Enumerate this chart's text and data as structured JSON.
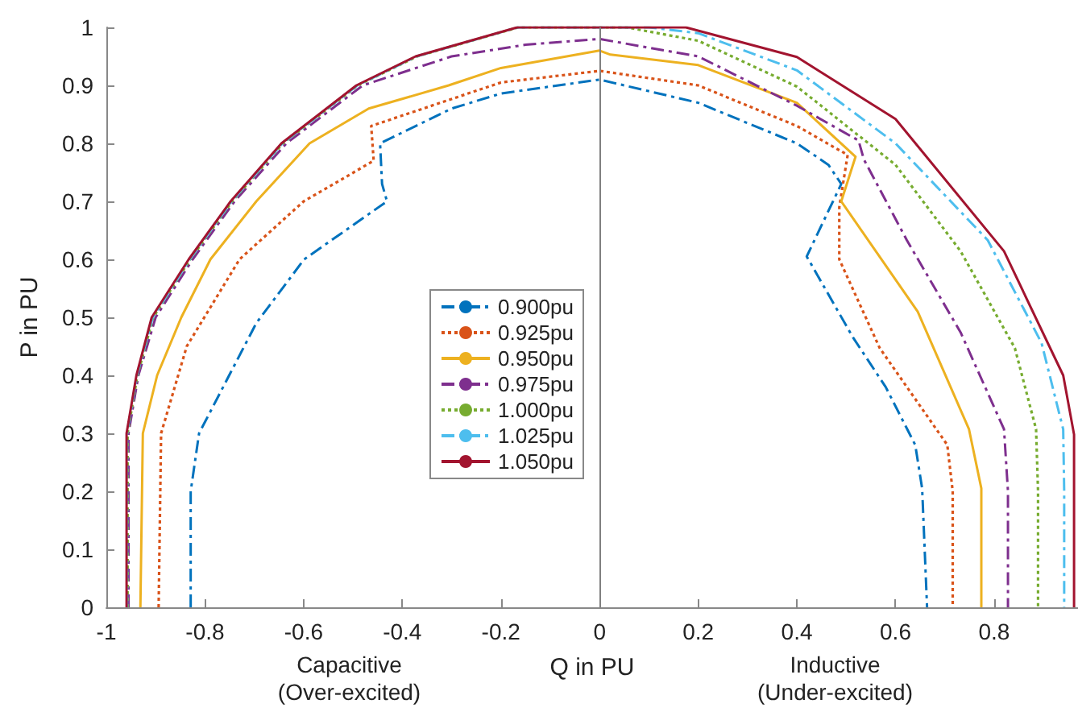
{
  "chart_data": {
    "type": "line",
    "xlabel": "Q in PU",
    "ylabel": "P in PU",
    "xlim": [
      -1,
      0.97
    ],
    "xticks": [
      -1,
      -0.8,
      -0.6,
      -0.4,
      -0.2,
      0,
      0.2,
      0.4,
      0.6,
      0.8
    ],
    "ylim": [
      0,
      1
    ],
    "yticks": [
      0,
      0.1,
      0.2,
      0.3,
      0.4,
      0.5,
      0.6,
      0.7,
      0.8,
      0.9,
      1
    ],
    "grid": false,
    "legend": "center left",
    "marker": "none",
    "annotations": [
      "Capacitive\n(Over-excited)",
      "Inductive\n(Under-excited)"
    ],
    "ref_lines": [
      {
        "axis": "x",
        "value": 0,
        "label": null,
        "color": "#808080"
      }
    ],
    "series": [
      {
        "name": "0.900pu",
        "color": "#0072bd",
        "line_style": "dashed",
        "x": [
          -0.829,
          -0.829,
          -0.812,
          -0.696,
          -0.599,
          -0.431,
          -0.441,
          -0.445,
          -0.3,
          -0.2,
          0,
          0.2,
          0.4,
          0.464,
          0.49,
          0.42,
          0.514,
          0.58,
          0.64,
          0.654,
          0.664
        ],
        "values": [
          0,
          0.2,
          0.3,
          0.49,
          0.6,
          0.7,
          0.73,
          0.8,
          0.86,
          0.886,
          0.91,
          0.87,
          0.8,
          0.763,
          0.73,
          0.605,
          0.465,
          0.38,
          0.28,
          0.205,
          0
        ]
      },
      {
        "name": "0.925pu",
        "color": "#d95319",
        "line_style": "dotted",
        "x": [
          -0.894,
          -0.889,
          -0.837,
          -0.73,
          -0.6,
          -0.458,
          -0.463,
          -0.2,
          0,
          0.2,
          0.4,
          0.503,
          0.486,
          0.486,
          0.568,
          0.705,
          0.716,
          0.716
        ],
        "values": [
          0,
          0.3,
          0.45,
          0.6,
          0.7,
          0.77,
          0.83,
          0.905,
          0.925,
          0.9,
          0.83,
          0.78,
          0.69,
          0.6,
          0.447,
          0.28,
          0.2,
          0
        ]
      },
      {
        "name": "0.950pu",
        "color": "#edb120",
        "line_style": "solid",
        "x": [
          -0.931,
          -0.926,
          -0.897,
          -0.848,
          -0.789,
          -0.696,
          -0.588,
          -0.468,
          -0.306,
          -0.2,
          0,
          0.022,
          0.2,
          0.4,
          0.519,
          0.49,
          0.645,
          0.749,
          0.774,
          0.774
        ],
        "values": [
          0,
          0.3,
          0.4,
          0.5,
          0.6,
          0.7,
          0.8,
          0.86,
          0.9,
          0.93,
          0.96,
          0.953,
          0.935,
          0.87,
          0.777,
          0.7,
          0.51,
          0.307,
          0.205,
          0
        ]
      },
      {
        "name": "0.975pu",
        "color": "#7e2f8e",
        "line_style": "dashed",
        "x": [
          -0.955,
          -0.955,
          -0.935,
          -0.9,
          -0.825,
          -0.74,
          -0.635,
          -0.48,
          -0.3,
          -0.15,
          0,
          0.2,
          0.4,
          0.525,
          0.536,
          0.623,
          0.732,
          0.82,
          0.828,
          0.828
        ],
        "values": [
          0,
          0.3,
          0.4,
          0.5,
          0.6,
          0.7,
          0.8,
          0.9,
          0.95,
          0.97,
          0.98,
          0.95,
          0.865,
          0.805,
          0.772,
          0.633,
          0.474,
          0.307,
          0.2,
          0
        ]
      },
      {
        "name": "1.000pu",
        "color": "#77ac30",
        "line_style": "dotted",
        "x": [
          -0.957,
          -0.957,
          -0.937,
          -0.905,
          -0.83,
          -0.745,
          -0.642,
          -0.49,
          -0.37,
          -0.165,
          0,
          0.055,
          0.2,
          0.4,
          0.6,
          0.732,
          0.842,
          0.885,
          0.889,
          0.889
        ],
        "values": [
          0,
          0.3,
          0.4,
          0.5,
          0.6,
          0.7,
          0.8,
          0.9,
          0.95,
          1,
          1,
          1,
          0.977,
          0.898,
          0.763,
          0.614,
          0.447,
          0.307,
          0.2,
          0
        ]
      },
      {
        "name": "1.025pu",
        "color": "#4dbeee",
        "line_style": "dashed",
        "x": [
          -0.958,
          -0.958,
          -0.938,
          -0.906,
          -0.831,
          -0.746,
          -0.643,
          -0.491,
          -0.371,
          -0.166,
          0,
          0.1,
          0.2,
          0.4,
          0.6,
          0.787,
          0.896,
          0.94,
          0.942,
          0.942
        ],
        "values": [
          0,
          0.3,
          0.4,
          0.5,
          0.6,
          0.7,
          0.8,
          0.9,
          0.95,
          1,
          1,
          1,
          0.99,
          0.926,
          0.8,
          0.633,
          0.456,
          0.307,
          0.2,
          0
        ]
      },
      {
        "name": "1.050pu",
        "color": "#a2142f",
        "line_style": "solid",
        "x": [
          -0.959,
          -0.959,
          -0.939,
          -0.908,
          -0.833,
          -0.748,
          -0.645,
          -0.493,
          -0.373,
          -0.167,
          0,
          0.175,
          0.4,
          0.6,
          0.82,
          0.94,
          0.962,
          0.962
        ],
        "values": [
          0,
          0.3,
          0.4,
          0.5,
          0.6,
          0.7,
          0.8,
          0.9,
          0.95,
          1,
          1,
          1,
          0.949,
          0.842,
          0.614,
          0.4,
          0.298,
          0
        ]
      }
    ]
  }
}
